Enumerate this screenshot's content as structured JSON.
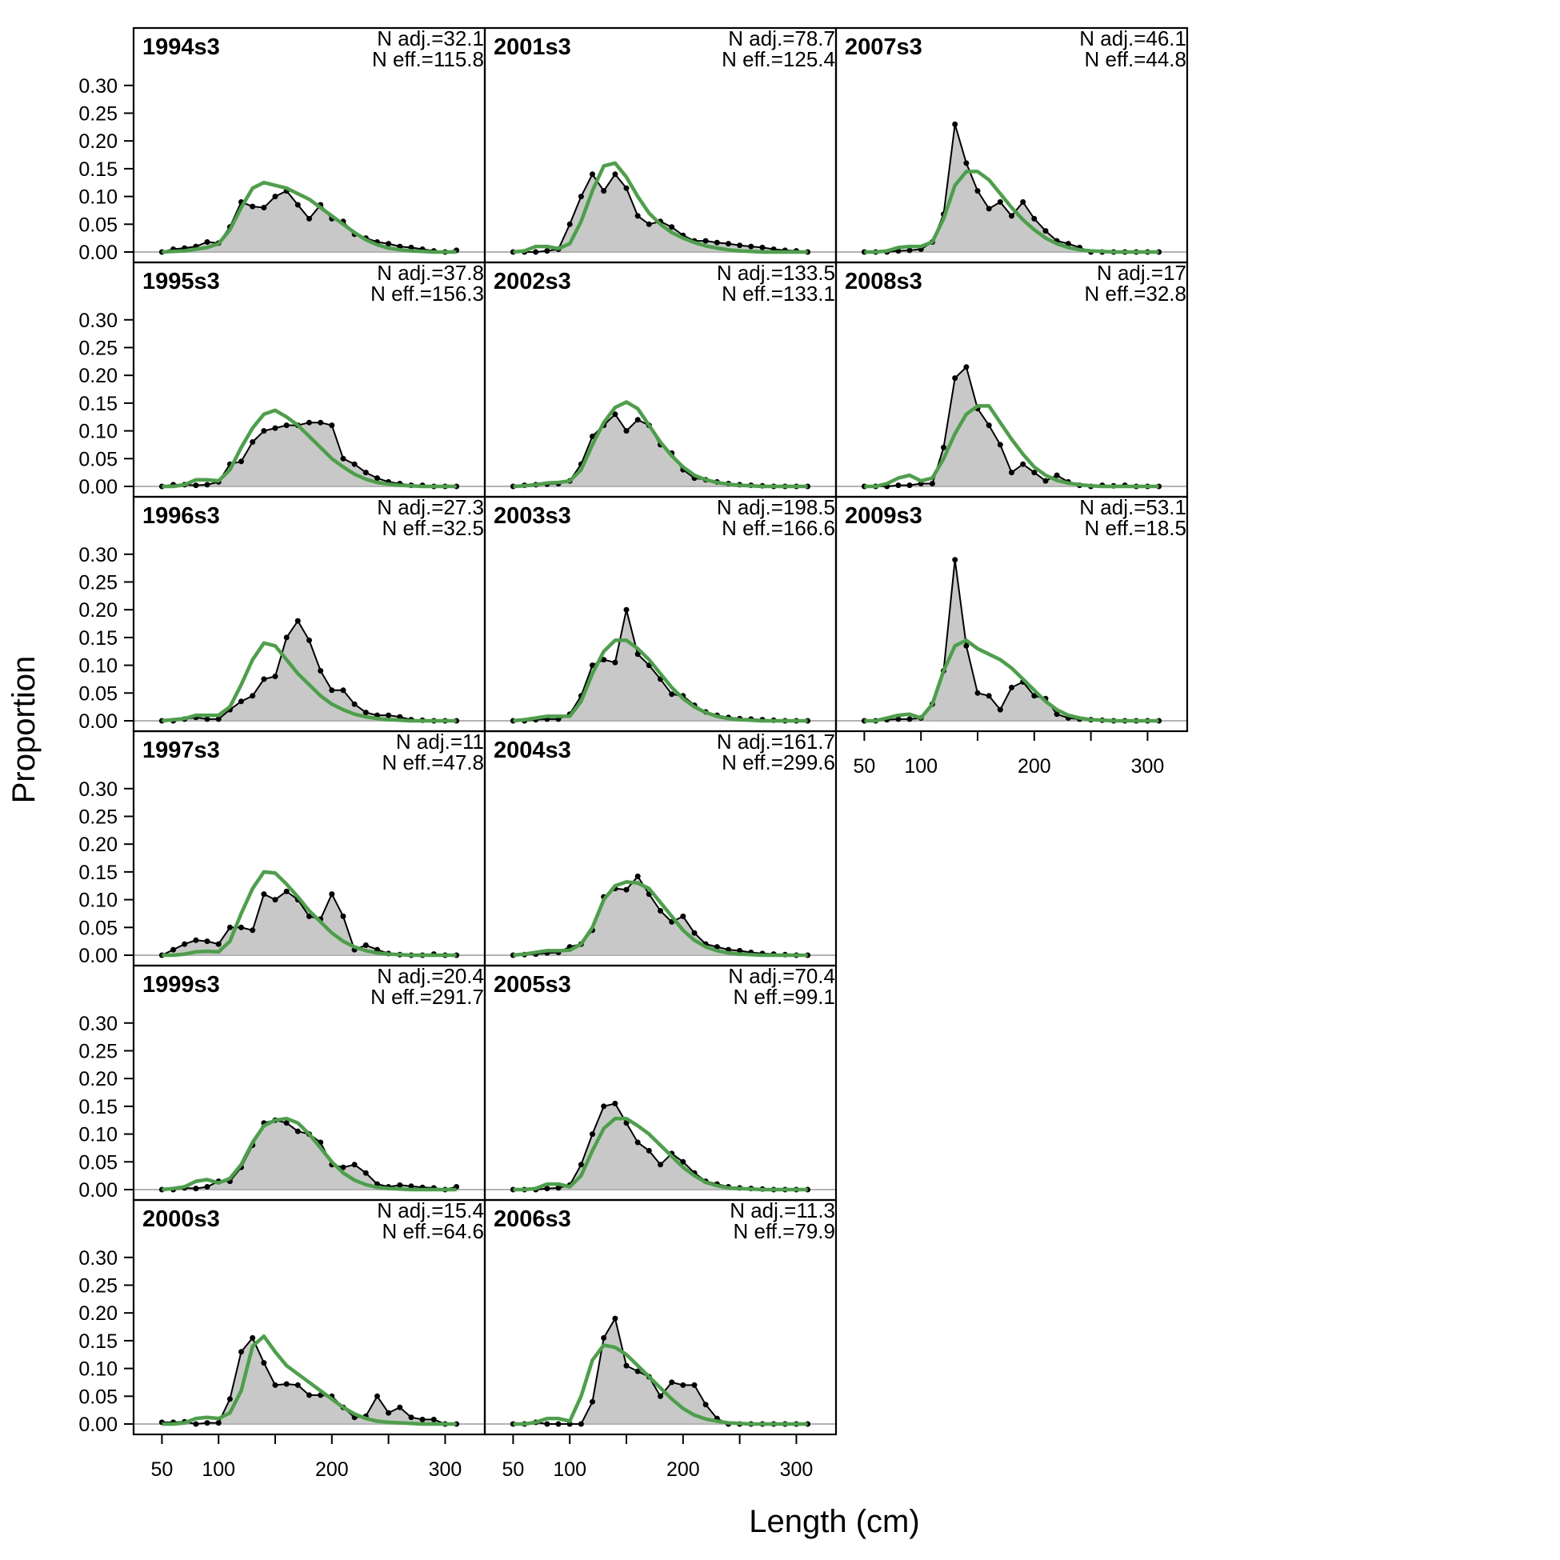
{
  "chart_data": {
    "type": "area",
    "ylabel": "Proportion",
    "xlabel": "Length (cm)",
    "xlim": [
      25,
      335
    ],
    "ylim": [
      0,
      0.34
    ],
    "x_ticks": [
      50,
      100,
      200,
      300
    ],
    "y_ticks": [
      "0.00",
      "0.05",
      "0.10",
      "0.15",
      "0.20",
      "0.25",
      "0.30"
    ],
    "colors": {
      "observed_fill": "#c8c8c8",
      "observed_line": "#000000",
      "expected_line": "#4aa148",
      "zero_line": "#b3b3b3"
    },
    "x": [
      50,
      60,
      70,
      80,
      90,
      100,
      110,
      120,
      130,
      140,
      150,
      160,
      170,
      180,
      190,
      200,
      210,
      220,
      230,
      240,
      250,
      260,
      270,
      280,
      290,
      300,
      310
    ],
    "panels": [
      {
        "title": "1994s3",
        "n_adj": "N adj.=32.1",
        "n_eff": "N eff.=115.8",
        "observed": [
          0.0,
          0.005,
          0.007,
          0.01,
          0.018,
          0.016,
          0.045,
          0.09,
          0.082,
          0.08,
          0.1,
          0.11,
          0.085,
          0.06,
          0.085,
          0.06,
          0.055,
          0.032,
          0.025,
          0.018,
          0.015,
          0.01,
          0.008,
          0.005,
          0.002,
          0.0,
          0.003
        ],
        "expected": [
          0.0,
          0.001,
          0.002,
          0.005,
          0.008,
          0.015,
          0.04,
          0.08,
          0.115,
          0.125,
          0.12,
          0.115,
          0.105,
          0.095,
          0.08,
          0.065,
          0.05,
          0.035,
          0.022,
          0.013,
          0.007,
          0.004,
          0.002,
          0.001,
          0.0,
          0.0,
          0.0
        ]
      },
      {
        "title": "1995s3",
        "n_adj": "N adj.=37.8",
        "n_eff": "N eff.=156.3",
        "observed": [
          0.0,
          0.003,
          0.003,
          0.002,
          0.003,
          0.008,
          0.04,
          0.045,
          0.08,
          0.1,
          0.105,
          0.11,
          0.11,
          0.115,
          0.115,
          0.11,
          0.05,
          0.04,
          0.025,
          0.015,
          0.008,
          0.005,
          0.002,
          0.002,
          0.0,
          0.0,
          0.0
        ],
        "expected": [
          0.0,
          0.0,
          0.003,
          0.012,
          0.012,
          0.01,
          0.03,
          0.07,
          0.105,
          0.13,
          0.137,
          0.125,
          0.11,
          0.09,
          0.07,
          0.05,
          0.035,
          0.022,
          0.013,
          0.007,
          0.004,
          0.002,
          0.001,
          0.0,
          0.0,
          0.0,
          0.0
        ]
      },
      {
        "title": "1996s3",
        "n_adj": "N adj.=27.3",
        "n_eff": "N eff.=32.5",
        "observed": [
          0.0,
          0.0,
          0.003,
          0.006,
          0.003,
          0.003,
          0.02,
          0.035,
          0.045,
          0.075,
          0.08,
          0.15,
          0.18,
          0.145,
          0.09,
          0.055,
          0.055,
          0.03,
          0.015,
          0.01,
          0.01,
          0.007,
          0.002,
          0.001,
          0.0,
          0.0,
          0.0
        ],
        "expected": [
          0.0,
          0.002,
          0.004,
          0.01,
          0.01,
          0.01,
          0.025,
          0.065,
          0.11,
          0.14,
          0.135,
          0.11,
          0.085,
          0.065,
          0.045,
          0.03,
          0.02,
          0.012,
          0.007,
          0.004,
          0.002,
          0.001,
          0.0,
          0.0,
          0.0,
          0.0,
          0.0
        ]
      },
      {
        "title": "1997s3",
        "n_adj": "N adj.=11",
        "n_eff": "N eff.=47.8",
        "observed": [
          0.0,
          0.01,
          0.02,
          0.027,
          0.025,
          0.02,
          0.05,
          0.05,
          0.045,
          0.11,
          0.1,
          0.115,
          0.1,
          0.07,
          0.065,
          0.11,
          0.07,
          0.01,
          0.018,
          0.01,
          0.003,
          0.001,
          0.0,
          0.0,
          0.002,
          0.0,
          0.0
        ],
        "expected": [
          0.0,
          0.0,
          0.002,
          0.006,
          0.007,
          0.006,
          0.025,
          0.075,
          0.12,
          0.15,
          0.148,
          0.128,
          0.105,
          0.08,
          0.06,
          0.04,
          0.025,
          0.015,
          0.008,
          0.004,
          0.002,
          0.001,
          0.0,
          0.0,
          0.0,
          0.0,
          0.0
        ]
      },
      {
        "title": "1999s3",
        "n_adj": "N adj.=20.4",
        "n_eff": "N eff.=291.7",
        "observed": [
          0.0,
          0.0,
          0.003,
          0.002,
          0.005,
          0.015,
          0.015,
          0.04,
          0.08,
          0.12,
          0.125,
          0.12,
          0.105,
          0.1,
          0.085,
          0.045,
          0.04,
          0.045,
          0.03,
          0.01,
          0.005,
          0.008,
          0.006,
          0.004,
          0.003,
          0.0,
          0.005
        ],
        "expected": [
          0.0,
          0.002,
          0.005,
          0.015,
          0.018,
          0.012,
          0.02,
          0.045,
          0.085,
          0.115,
          0.125,
          0.128,
          0.12,
          0.1,
          0.075,
          0.05,
          0.03,
          0.017,
          0.009,
          0.004,
          0.002,
          0.001,
          0.0,
          0.0,
          0.0,
          0.0,
          0.0
        ]
      },
      {
        "title": "2000s3",
        "n_adj": "N adj.=15.4",
        "n_eff": "N eff.=64.6",
        "observed": [
          0.003,
          0.003,
          0.004,
          0.0,
          0.002,
          0.002,
          0.045,
          0.13,
          0.155,
          0.11,
          0.07,
          0.072,
          0.07,
          0.052,
          0.052,
          0.05,
          0.03,
          0.012,
          0.014,
          0.05,
          0.02,
          0.03,
          0.012,
          0.008,
          0.008,
          0.0,
          0.0
        ],
        "expected": [
          0.0,
          0.0,
          0.002,
          0.01,
          0.012,
          0.01,
          0.02,
          0.06,
          0.14,
          0.158,
          0.13,
          0.105,
          0.09,
          0.075,
          0.06,
          0.045,
          0.03,
          0.018,
          0.01,
          0.005,
          0.003,
          0.002,
          0.001,
          0.0,
          0.0,
          0.0,
          0.0
        ]
      },
      {
        "title": "2001s3",
        "n_adj": "N adj.=78.7",
        "n_eff": "N eff.=125.4",
        "observed": [
          0.0,
          0.0,
          0.0,
          0.002,
          0.005,
          0.05,
          0.1,
          0.14,
          0.11,
          0.14,
          0.115,
          0.065,
          0.05,
          0.055,
          0.045,
          0.03,
          0.02,
          0.02,
          0.017,
          0.015,
          0.012,
          0.01,
          0.008,
          0.005,
          0.003,
          0.002,
          0.0
        ],
        "expected": [
          0.0,
          0.002,
          0.01,
          0.01,
          0.006,
          0.015,
          0.055,
          0.11,
          0.155,
          0.16,
          0.135,
          0.1,
          0.07,
          0.05,
          0.035,
          0.025,
          0.017,
          0.011,
          0.007,
          0.004,
          0.002,
          0.001,
          0.0,
          0.0,
          0.0,
          0.0,
          0.0
        ]
      },
      {
        "title": "2002s3",
        "n_adj": "N adj.=133.5",
        "n_eff": "N eff.=133.1",
        "observed": [
          0.0,
          0.002,
          0.003,
          0.004,
          0.005,
          0.01,
          0.04,
          0.09,
          0.11,
          0.13,
          0.1,
          0.12,
          0.11,
          0.075,
          0.06,
          0.03,
          0.015,
          0.012,
          0.008,
          0.005,
          0.003,
          0.002,
          0.001,
          0.0,
          0.0,
          0.0,
          0.0
        ],
        "expected": [
          0.0,
          0.001,
          0.003,
          0.006,
          0.007,
          0.01,
          0.03,
          0.075,
          0.115,
          0.142,
          0.152,
          0.14,
          0.11,
          0.08,
          0.055,
          0.035,
          0.02,
          0.012,
          0.007,
          0.004,
          0.002,
          0.001,
          0.0,
          0.0,
          0.0,
          0.0,
          0.0
        ]
      },
      {
        "title": "2003s3",
        "n_adj": "N adj.=198.5",
        "n_eff": "N eff.=166.6",
        "observed": [
          0.0,
          0.0,
          0.002,
          0.003,
          0.003,
          0.012,
          0.045,
          0.1,
          0.11,
          0.105,
          0.2,
          0.12,
          0.1,
          0.075,
          0.048,
          0.045,
          0.028,
          0.016,
          0.01,
          0.006,
          0.004,
          0.003,
          0.002,
          0.001,
          0.0,
          0.0,
          0.0
        ],
        "expected": [
          0.0,
          0.002,
          0.005,
          0.008,
          0.008,
          0.008,
          0.035,
          0.085,
          0.125,
          0.145,
          0.145,
          0.13,
          0.11,
          0.085,
          0.06,
          0.04,
          0.025,
          0.015,
          0.008,
          0.004,
          0.002,
          0.001,
          0.0,
          0.0,
          0.0,
          0.0,
          0.0
        ]
      },
      {
        "title": "2004s3",
        "n_adj": "N adj.=161.7",
        "n_eff": "N eff.=299.6",
        "observed": [
          0.0,
          0.001,
          0.002,
          0.004,
          0.005,
          0.015,
          0.02,
          0.045,
          0.105,
          0.12,
          0.118,
          0.142,
          0.11,
          0.08,
          0.06,
          0.07,
          0.04,
          0.02,
          0.015,
          0.01,
          0.008,
          0.005,
          0.003,
          0.002,
          0.001,
          0.0,
          0.0
        ],
        "expected": [
          0.0,
          0.002,
          0.005,
          0.008,
          0.008,
          0.009,
          0.02,
          0.05,
          0.1,
          0.125,
          0.132,
          0.13,
          0.12,
          0.095,
          0.07,
          0.045,
          0.027,
          0.015,
          0.008,
          0.004,
          0.002,
          0.001,
          0.0,
          0.0,
          0.0,
          0.0,
          0.0
        ]
      },
      {
        "title": "2005s3",
        "n_adj": "N adj.=70.4",
        "n_eff": "N eff.=99.1",
        "observed": [
          0.0,
          0.0,
          0.0,
          0.002,
          0.003,
          0.008,
          0.045,
          0.1,
          0.15,
          0.155,
          0.12,
          0.085,
          0.07,
          0.045,
          0.065,
          0.05,
          0.03,
          0.015,
          0.01,
          0.005,
          0.003,
          0.002,
          0.001,
          0.0,
          0.0,
          0.0,
          0.0
        ],
        "expected": [
          0.0,
          0.0,
          0.002,
          0.01,
          0.01,
          0.005,
          0.025,
          0.07,
          0.11,
          0.128,
          0.128,
          0.115,
          0.1,
          0.08,
          0.06,
          0.04,
          0.025,
          0.013,
          0.007,
          0.003,
          0.002,
          0.001,
          0.0,
          0.0,
          0.0,
          0.0,
          0.0
        ]
      },
      {
        "title": "2006s3",
        "n_adj": "N adj.=11.3",
        "n_eff": "N eff.=79.9",
        "observed": [
          0.0,
          0.0,
          0.003,
          0.0,
          0.0,
          0.0,
          0.0,
          0.04,
          0.155,
          0.19,
          0.105,
          0.095,
          0.085,
          0.05,
          0.075,
          0.07,
          0.07,
          0.035,
          0.01,
          0.0,
          0.0,
          0.0,
          0.0,
          0.0,
          0.0,
          0.0,
          0.0
        ],
        "expected": [
          0.0,
          0.0,
          0.003,
          0.01,
          0.01,
          0.005,
          0.05,
          0.115,
          0.142,
          0.138,
          0.125,
          0.105,
          0.085,
          0.065,
          0.045,
          0.028,
          0.016,
          0.009,
          0.005,
          0.002,
          0.001,
          0.0,
          0.0,
          0.0,
          0.0,
          0.0,
          0.0
        ]
      },
      {
        "title": "2007s3",
        "n_adj": "N adj.=46.1",
        "n_eff": "N eff.=44.8",
        "observed": [
          0.0,
          0.0,
          0.0,
          0.002,
          0.003,
          0.005,
          0.018,
          0.068,
          0.23,
          0.16,
          0.11,
          0.078,
          0.09,
          0.065,
          0.09,
          0.06,
          0.038,
          0.02,
          0.015,
          0.008,
          0.0,
          0.0,
          0.0,
          0.0,
          0.0,
          0.0,
          0.0
        ],
        "expected": [
          0.0,
          0.0,
          0.002,
          0.008,
          0.01,
          0.01,
          0.018,
          0.06,
          0.12,
          0.145,
          0.145,
          0.13,
          0.105,
          0.08,
          0.058,
          0.04,
          0.025,
          0.015,
          0.008,
          0.004,
          0.002,
          0.001,
          0.0,
          0.0,
          0.0,
          0.0,
          0.0
        ]
      },
      {
        "title": "2008s3",
        "n_adj": "N adj.=17",
        "n_eff": "N eff.=32.8",
        "observed": [
          0.0,
          0.0,
          0.0,
          0.002,
          0.002,
          0.005,
          0.005,
          0.07,
          0.195,
          0.215,
          0.14,
          0.11,
          0.075,
          0.025,
          0.04,
          0.025,
          0.01,
          0.02,
          0.008,
          0.002,
          0.0,
          0.002,
          0.001,
          0.002,
          0.0,
          0.0,
          0.0
        ],
        "expected": [
          0.0,
          0.0,
          0.005,
          0.015,
          0.02,
          0.01,
          0.015,
          0.05,
          0.095,
          0.13,
          0.145,
          0.145,
          0.115,
          0.085,
          0.058,
          0.035,
          0.02,
          0.011,
          0.006,
          0.003,
          0.001,
          0.0,
          0.0,
          0.0,
          0.0,
          0.0,
          0.0
        ]
      },
      {
        "title": "2009s3",
        "n_adj": "N adj.=53.1",
        "n_eff": "N eff.=18.5",
        "observed": [
          0.0,
          0.0,
          0.002,
          0.003,
          0.003,
          0.005,
          0.03,
          0.09,
          0.29,
          0.135,
          0.05,
          0.045,
          0.02,
          0.06,
          0.07,
          0.045,
          0.04,
          0.012,
          0.005,
          0.003,
          0.002,
          0.001,
          0.0,
          0.0,
          0.0,
          0.0,
          0.0
        ],
        "expected": [
          0.0,
          0.0,
          0.005,
          0.01,
          0.012,
          0.005,
          0.03,
          0.09,
          0.135,
          0.145,
          0.13,
          0.12,
          0.11,
          0.095,
          0.075,
          0.055,
          0.035,
          0.02,
          0.01,
          0.005,
          0.002,
          0.001,
          0.0,
          0.0,
          0.0,
          0.0,
          0.0
        ]
      }
    ]
  }
}
